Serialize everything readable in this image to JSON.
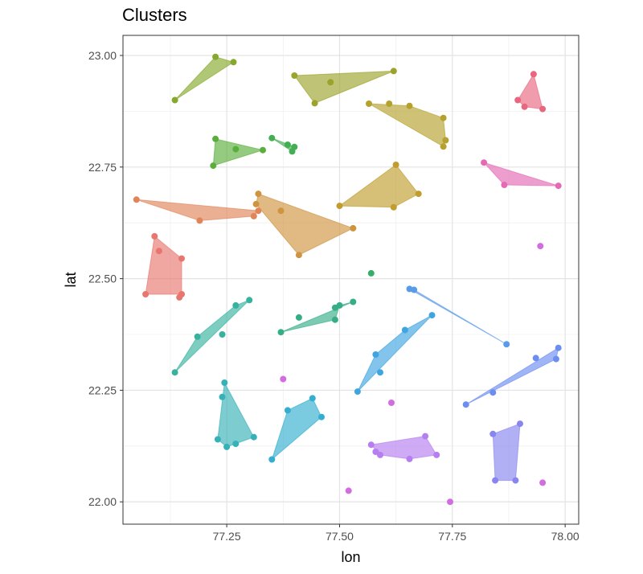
{
  "chart_data": {
    "type": "scatter",
    "title": "Clusters",
    "xlabel": "lon",
    "ylabel": "lat",
    "xlim": [
      77.02,
      78.03
    ],
    "ylim": [
      21.95,
      23.045
    ],
    "x_ticks": [
      77.25,
      77.5,
      77.75,
      78.0
    ],
    "x_tick_labels": [
      "77.25",
      "77.50",
      "77.75",
      "78.00"
    ],
    "y_ticks": [
      22.0,
      22.25,
      22.5,
      22.75,
      23.0
    ],
    "y_tick_labels": [
      "22.00",
      "22.25",
      "22.50",
      "22.75",
      "23.00"
    ],
    "grid": true,
    "legend": "none",
    "clusters": [
      {
        "color": "#e8766e",
        "hull": [
          [
            77.09,
            22.595
          ],
          [
            77.15,
            22.545
          ],
          [
            77.15,
            22.465
          ],
          [
            77.07,
            22.465
          ]
        ],
        "points": [
          [
            77.09,
            22.595
          ],
          [
            77.1,
            22.562
          ],
          [
            77.15,
            22.545
          ],
          [
            77.15,
            22.465
          ],
          [
            77.145,
            22.458
          ],
          [
            77.07,
            22.465
          ]
        ]
      },
      {
        "color": "#e0855a",
        "hull": [
          [
            77.05,
            22.677
          ],
          [
            77.32,
            22.652
          ],
          [
            77.31,
            22.64
          ],
          [
            77.19,
            22.63
          ]
        ],
        "points": [
          [
            77.05,
            22.677
          ],
          [
            77.19,
            22.63
          ],
          [
            77.31,
            22.64
          ],
          [
            77.32,
            22.652
          ]
        ]
      },
      {
        "color": "#cf9440",
        "hull": [
          [
            77.32,
            22.69
          ],
          [
            77.53,
            22.613
          ],
          [
            77.41,
            22.553
          ],
          [
            77.315,
            22.667
          ]
        ],
        "points": [
          [
            77.32,
            22.69
          ],
          [
            77.315,
            22.667
          ],
          [
            77.37,
            22.652
          ],
          [
            77.53,
            22.613
          ],
          [
            77.41,
            22.553
          ]
        ]
      },
      {
        "color": "#c09d2e",
        "hull": [
          [
            77.625,
            22.755
          ],
          [
            77.675,
            22.69
          ],
          [
            77.62,
            22.66
          ],
          [
            77.5,
            22.663
          ]
        ],
        "points": [
          [
            77.625,
            22.755
          ],
          [
            77.675,
            22.69
          ],
          [
            77.62,
            22.66
          ],
          [
            77.5,
            22.663
          ]
        ]
      },
      {
        "color": "#b5a12d",
        "hull": [
          [
            77.565,
            22.892
          ],
          [
            77.655,
            22.887
          ],
          [
            77.73,
            22.86
          ],
          [
            77.735,
            22.81
          ],
          [
            77.73,
            22.796
          ]
        ],
        "points": [
          [
            77.565,
            22.892
          ],
          [
            77.61,
            22.892
          ],
          [
            77.655,
            22.887
          ],
          [
            77.73,
            22.86
          ],
          [
            77.735,
            22.81
          ],
          [
            77.73,
            22.796
          ]
        ]
      },
      {
        "color": "#9ca32b",
        "hull": [
          [
            77.4,
            22.955
          ],
          [
            77.62,
            22.965
          ],
          [
            77.445,
            22.893
          ]
        ],
        "points": [
          [
            77.4,
            22.955
          ],
          [
            77.48,
            22.94
          ],
          [
            77.62,
            22.965
          ],
          [
            77.445,
            22.893
          ]
        ]
      },
      {
        "color": "#86a92d",
        "hull": [
          [
            77.225,
            22.997
          ],
          [
            77.265,
            22.985
          ],
          [
            77.135,
            22.9
          ]
        ],
        "points": [
          [
            77.225,
            22.997
          ],
          [
            77.265,
            22.985
          ],
          [
            77.135,
            22.9
          ]
        ]
      },
      {
        "color": "#5aaf3c",
        "hull": [
          [
            77.225,
            22.813
          ],
          [
            77.33,
            22.788
          ],
          [
            77.22,
            22.753
          ]
        ],
        "points": [
          [
            77.225,
            22.813
          ],
          [
            77.27,
            22.79
          ],
          [
            77.33,
            22.788
          ],
          [
            77.22,
            22.753
          ]
        ]
      },
      {
        "color": "#44ae52",
        "hull": [
          [
            77.35,
            22.815
          ],
          [
            77.4,
            22.795
          ],
          [
            77.395,
            22.785
          ]
        ],
        "points": [
          [
            77.35,
            22.815
          ],
          [
            77.385,
            22.8
          ],
          [
            77.4,
            22.795
          ],
          [
            77.395,
            22.785
          ]
        ]
      },
      {
        "color": "#38ad6a",
        "hull": [],
        "points": [
          [
            77.57,
            22.512
          ]
        ]
      },
      {
        "color": "#35ae87",
        "hull": [
          [
            77.53,
            22.448
          ],
          [
            77.37,
            22.38
          ],
          [
            77.49,
            22.408
          ],
          [
            77.5,
            22.44
          ]
        ],
        "points": [
          [
            77.53,
            22.448
          ],
          [
            77.5,
            22.44
          ],
          [
            77.49,
            22.435
          ],
          [
            77.41,
            22.413
          ],
          [
            77.49,
            22.408
          ],
          [
            77.37,
            22.38
          ]
        ]
      },
      {
        "color": "#38b29f",
        "hull": [
          [
            77.3,
            22.452
          ],
          [
            77.27,
            22.44
          ],
          [
            77.185,
            22.37
          ],
          [
            77.135,
            22.29
          ]
        ],
        "points": [
          [
            77.3,
            22.452
          ],
          [
            77.27,
            22.44
          ],
          [
            77.185,
            22.37
          ],
          [
            77.24,
            22.375
          ],
          [
            77.135,
            22.29
          ]
        ]
      },
      {
        "color": "#36b1b7",
        "hull": [
          [
            77.245,
            22.267
          ],
          [
            77.31,
            22.145
          ],
          [
            77.25,
            22.123
          ],
          [
            77.23,
            22.14
          ]
        ],
        "points": [
          [
            77.245,
            22.267
          ],
          [
            77.24,
            22.235
          ],
          [
            77.31,
            22.145
          ],
          [
            77.27,
            22.13
          ],
          [
            77.25,
            22.123
          ],
          [
            77.23,
            22.14
          ]
        ]
      },
      {
        "color": "#33aed0",
        "hull": [
          [
            77.44,
            22.232
          ],
          [
            77.46,
            22.19
          ],
          [
            77.35,
            22.095
          ],
          [
            77.385,
            22.205
          ]
        ],
        "points": [
          [
            77.44,
            22.232
          ],
          [
            77.385,
            22.205
          ],
          [
            77.46,
            22.19
          ],
          [
            77.35,
            22.095
          ]
        ]
      },
      {
        "color": "#3fa5e0",
        "hull": [
          [
            77.705,
            22.418
          ],
          [
            77.645,
            22.385
          ],
          [
            77.58,
            22.33
          ],
          [
            77.54,
            22.247
          ]
        ],
        "points": [
          [
            77.705,
            22.418
          ],
          [
            77.645,
            22.385
          ],
          [
            77.58,
            22.33
          ],
          [
            77.59,
            22.29
          ],
          [
            77.54,
            22.247
          ]
        ]
      },
      {
        "color": "#5a9be8",
        "hull": [
          [
            77.655,
            22.477
          ],
          [
            77.665,
            22.475
          ],
          [
            77.87,
            22.353
          ]
        ],
        "points": [
          [
            77.655,
            22.477
          ],
          [
            77.665,
            22.475
          ],
          [
            77.87,
            22.353
          ]
        ]
      },
      {
        "color": "#6b8ef0",
        "hull": [
          [
            77.985,
            22.345
          ],
          [
            77.98,
            22.32
          ],
          [
            77.78,
            22.218
          ]
        ],
        "points": [
          [
            77.985,
            22.345
          ],
          [
            77.935,
            22.322
          ],
          [
            77.98,
            22.32
          ],
          [
            77.84,
            22.245
          ],
          [
            77.78,
            22.218
          ]
        ]
      },
      {
        "color": "#8985f0",
        "hull": [
          [
            77.9,
            22.175
          ],
          [
            77.84,
            22.152
          ],
          [
            77.845,
            22.048
          ],
          [
            77.89,
            22.048
          ]
        ],
        "points": [
          [
            77.9,
            22.175
          ],
          [
            77.84,
            22.152
          ],
          [
            77.845,
            22.048
          ],
          [
            77.89,
            22.048
          ]
        ]
      },
      {
        "color": "#b67ef0",
        "hull": [
          [
            77.57,
            22.128
          ],
          [
            77.69,
            22.147
          ],
          [
            77.715,
            22.105
          ],
          [
            77.655,
            22.096
          ],
          [
            77.59,
            22.105
          ]
        ],
        "points": [
          [
            77.57,
            22.128
          ],
          [
            77.69,
            22.147
          ],
          [
            77.715,
            22.105
          ],
          [
            77.655,
            22.096
          ],
          [
            77.59,
            22.105
          ],
          [
            77.58,
            22.112
          ]
        ]
      },
      {
        "color": "#d26de0",
        "hull": [],
        "points": [
          [
            77.375,
            22.275
          ],
          [
            77.615,
            22.222
          ],
          [
            77.52,
            22.025
          ],
          [
            77.745,
            22.0
          ],
          [
            77.95,
            22.043
          ],
          [
            77.945,
            22.573
          ]
        ]
      },
      {
        "color": "#e56ab4",
        "hull": [
          [
            77.82,
            22.76
          ],
          [
            77.985,
            22.708
          ],
          [
            77.865,
            22.71
          ]
        ],
        "points": [
          [
            77.82,
            22.76
          ],
          [
            77.865,
            22.71
          ],
          [
            77.985,
            22.708
          ]
        ]
      },
      {
        "color": "#e8677f",
        "hull": [
          [
            77.93,
            22.958
          ],
          [
            77.95,
            22.88
          ],
          [
            77.91,
            22.885
          ],
          [
            77.895,
            22.9
          ]
        ],
        "points": [
          [
            77.93,
            22.958
          ],
          [
            77.895,
            22.9
          ],
          [
            77.91,
            22.885
          ],
          [
            77.95,
            22.88
          ]
        ]
      }
    ]
  }
}
